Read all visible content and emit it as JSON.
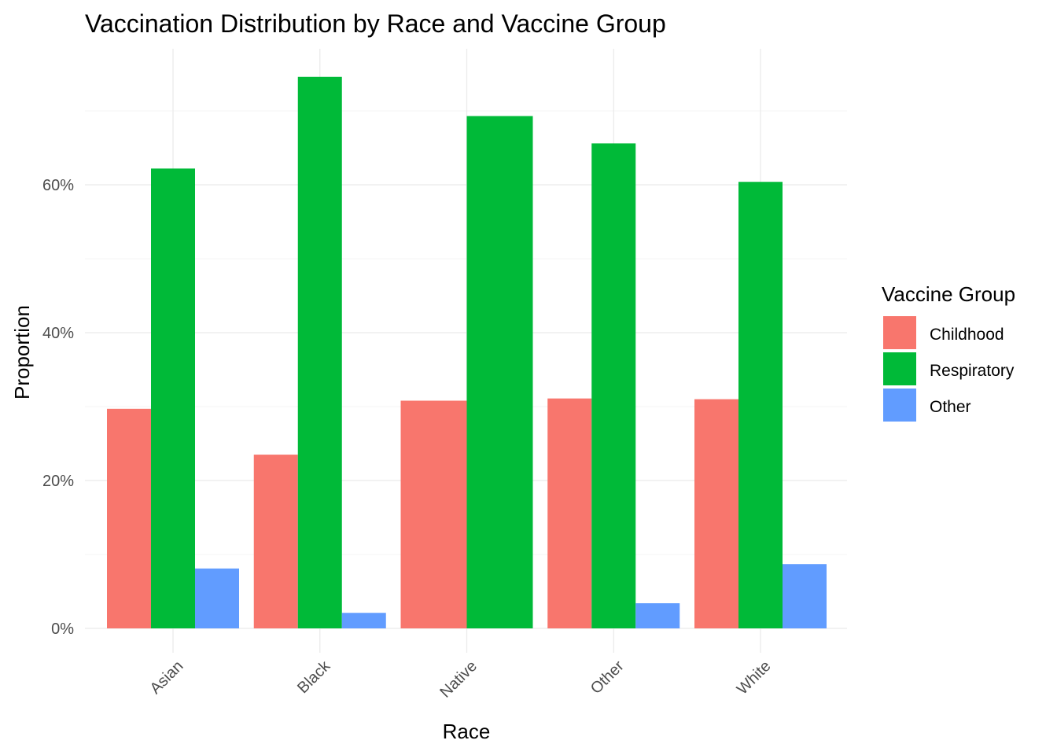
{
  "chart_data": {
    "type": "bar",
    "title": "Vaccination Distribution by Race and Vaccine Group",
    "xlabel": "Race",
    "ylabel": "Proportion",
    "categories": [
      "Asian",
      "Black",
      "Native",
      "Other",
      "White"
    ],
    "series": [
      {
        "name": "Childhood",
        "color": "#F8766D",
        "values": [
          0.297,
          0.235,
          0.308,
          0.311,
          0.31
        ]
      },
      {
        "name": "Respiratory",
        "color": "#00BA38",
        "values": [
          0.622,
          0.746,
          0.693,
          0.656,
          0.604
        ]
      },
      {
        "name": "Other",
        "color": "#619CFF",
        "values": [
          0.081,
          0.021,
          0.0,
          0.034,
          0.087
        ]
      }
    ],
    "ylim": [
      0,
      0.78
    ],
    "yticks": [
      0,
      0.2,
      0.4,
      0.6
    ],
    "ytick_labels": [
      "0%",
      "20%",
      "40%",
      "60%"
    ],
    "legend": {
      "title": "Vaccine Group",
      "position": "right"
    },
    "grid": true,
    "x_tick_rotation": 45
  }
}
